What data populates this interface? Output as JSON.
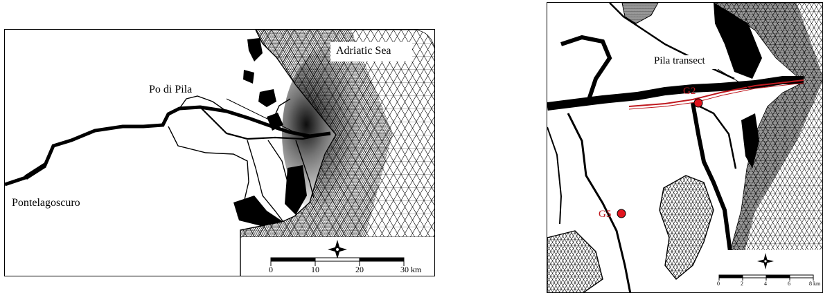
{
  "left_map": {
    "labels": {
      "sea": "Adriatic Sea",
      "po_di_pila": "Po di Pila",
      "pontelagoscuro": "Pontelagoscuro"
    },
    "scale_ticks": [
      "0",
      "10",
      "20",
      "30 km"
    ]
  },
  "right_map": {
    "labels": {
      "transect": "Pila transect",
      "g2": "G2",
      "g5": "G5"
    },
    "scale_ticks": [
      "0",
      "2",
      "4",
      "6",
      "8 km"
    ]
  },
  "colors": {
    "mesh": "#000000",
    "station": "#e0141e",
    "transect": "#c0191f",
    "station_label": "#c0191f"
  }
}
